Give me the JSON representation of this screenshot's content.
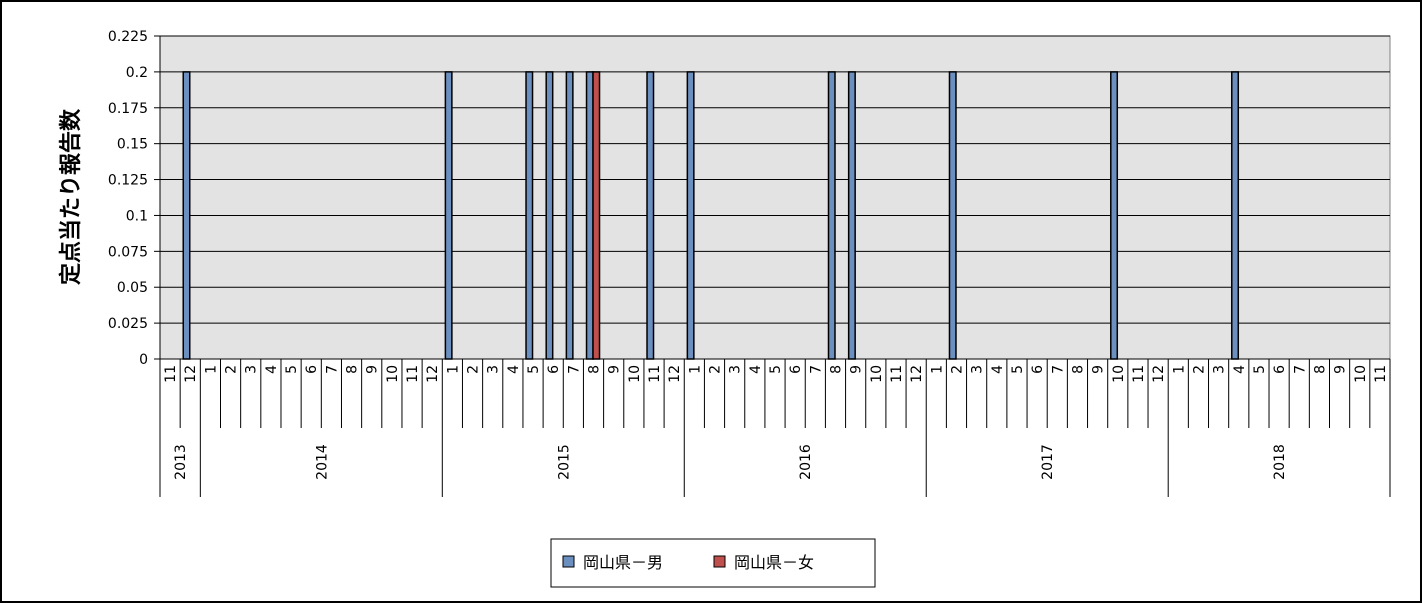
{
  "chart_data": {
    "type": "bar",
    "title": "",
    "ylabel": "定点当たり報告数",
    "xlabel": "",
    "ylim": [
      0,
      0.225
    ],
    "yticks": [
      "0",
      "0.025",
      "0.05",
      "0.075",
      "0.1",
      "0.125",
      "0.15",
      "0.175",
      "0.2",
      "0.225"
    ],
    "grid": true,
    "legend_position": "bottom",
    "years": [
      {
        "label": "2013",
        "months": 2
      },
      {
        "label": "2014",
        "months": 12
      },
      {
        "label": "2015",
        "months": 12
      },
      {
        "label": "2016",
        "months": 12
      },
      {
        "label": "2017",
        "months": 12
      },
      {
        "label": "2018",
        "months": 11
      }
    ],
    "categories": [
      "11",
      "12",
      "1",
      "2",
      "3",
      "4",
      "5",
      "6",
      "7",
      "8",
      "9",
      "10",
      "11",
      "12",
      "1",
      "2",
      "3",
      "4",
      "5",
      "6",
      "7",
      "8",
      "9",
      "10",
      "11",
      "12",
      "1",
      "2",
      "3",
      "4",
      "5",
      "6",
      "7",
      "8",
      "9",
      "10",
      "11",
      "12",
      "1",
      "2",
      "3",
      "4",
      "5",
      "6",
      "7",
      "8",
      "9",
      "10",
      "11",
      "12",
      "1",
      "2",
      "3",
      "4",
      "5",
      "6",
      "7",
      "8",
      "9",
      "10",
      "11"
    ],
    "series": [
      {
        "name": "岡山県－男",
        "color": "#6b8fbf",
        "values": [
          0,
          0.2,
          0,
          0,
          0,
          0,
          0,
          0,
          0,
          0,
          0,
          0,
          0,
          0,
          0.2,
          0,
          0,
          0,
          0.2,
          0.2,
          0.2,
          0.2,
          0,
          0,
          0.2,
          0,
          0.2,
          0,
          0,
          0,
          0,
          0,
          0,
          0.2,
          0.2,
          0,
          0,
          0,
          0,
          0.2,
          0,
          0,
          0,
          0,
          0,
          0,
          0,
          0.2,
          0,
          0,
          0,
          0,
          0,
          0.2,
          0,
          0,
          0,
          0,
          0,
          0,
          0
        ]
      },
      {
        "name": "岡山県－女",
        "color": "#c0504d",
        "values": [
          0,
          0,
          0,
          0,
          0,
          0,
          0,
          0,
          0,
          0,
          0,
          0,
          0,
          0,
          0,
          0,
          0,
          0,
          0,
          0,
          0,
          0.2,
          0,
          0,
          0,
          0,
          0,
          0,
          0,
          0,
          0,
          0,
          0,
          0,
          0,
          0,
          0,
          0,
          0,
          0,
          0,
          0,
          0,
          0,
          0,
          0,
          0,
          0,
          0,
          0,
          0,
          0,
          0,
          0,
          0,
          0,
          0,
          0,
          0,
          0,
          0
        ]
      }
    ],
    "colors": {
      "plot_background": "#e3e3e3",
      "gridline": "#000000",
      "male_bar": "#6b8fbf",
      "female_bar": "#c0504d"
    }
  }
}
